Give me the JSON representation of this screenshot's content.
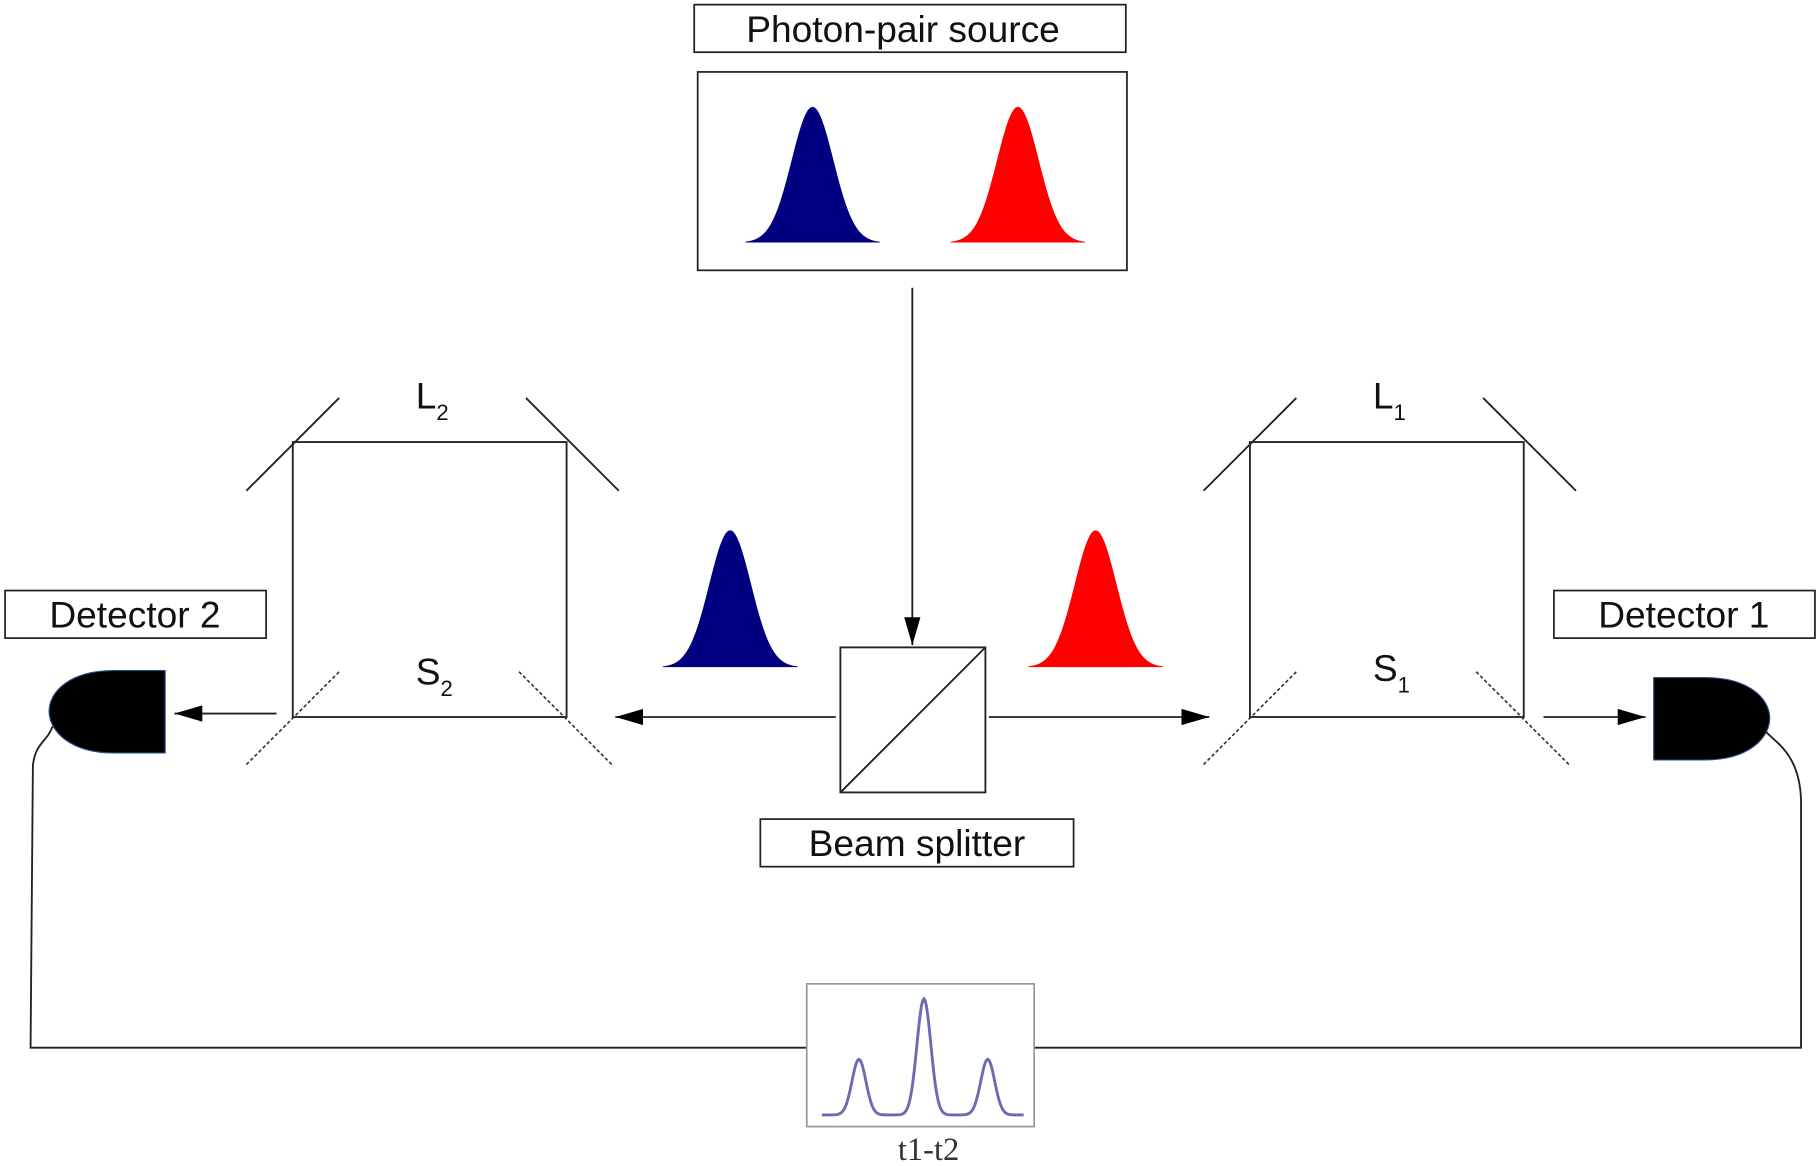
{
  "labels": {
    "source": "Photon-pair source",
    "beam_splitter": "Beam splitter",
    "detector1": "Detector 1",
    "detector2": "Detector 2",
    "l1": "L",
    "l1_sub": "1",
    "l2": "L",
    "l2_sub": "2",
    "s1": "S",
    "s1_sub": "1",
    "s2": "S",
    "s2_sub": "2",
    "t1": "t",
    "t1_sub": "1",
    "dash": "-",
    "t2": "t",
    "t2_sub": "2"
  },
  "colors": {
    "blue_photon": "#000080",
    "red_photon": "#ff0000",
    "detector": "#000000",
    "coincidence_trace": "#6b6bb0"
  }
}
